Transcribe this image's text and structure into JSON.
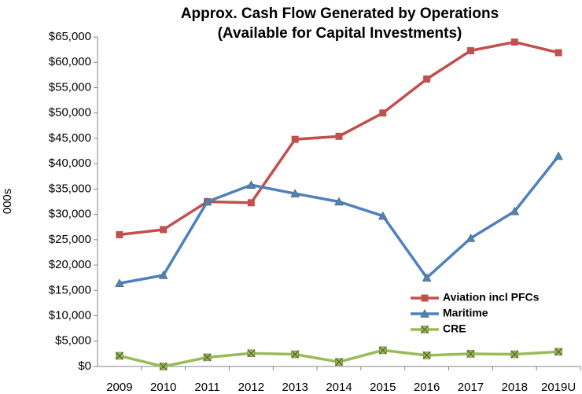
{
  "chart_data": {
    "type": "line",
    "title": "Approx. Cash Flow Generated by Operations",
    "subtitle": "(Available for Capital Investments)",
    "y_label": "000s",
    "categories": [
      "2009",
      "2010",
      "2011",
      "2012",
      "2013",
      "2014",
      "2015",
      "2016",
      "2017",
      "2018",
      "2019U"
    ],
    "series": [
      {
        "name": "Aviation incl PFCs",
        "color": "#c0504d",
        "marker": "square",
        "values": [
          26000,
          27000,
          32500,
          32300,
          44800,
          45400,
          50000,
          56700,
          62300,
          64000,
          61900
        ]
      },
      {
        "name": "Maritime",
        "color": "#4f81bd",
        "marker": "triangle",
        "values": [
          16400,
          18000,
          32500,
          35800,
          34100,
          32500,
          29700,
          17500,
          25300,
          30600,
          41500
        ]
      },
      {
        "name": "CRE",
        "color": "#9bbb59",
        "marker": "xsquare",
        "values": [
          2100,
          0,
          1800,
          2600,
          2400,
          900,
          3200,
          2200,
          2500,
          2400,
          2900
        ]
      }
    ],
    "ylim": [
      0,
      65000
    ],
    "yticks": [
      {
        "value": 0,
        "label": "$0"
      },
      {
        "value": 5000,
        "label": "$5,000"
      },
      {
        "value": 10000,
        "label": "$10,000"
      },
      {
        "value": 15000,
        "label": "$15,000"
      },
      {
        "value": 20000,
        "label": "$20,000"
      },
      {
        "value": 25000,
        "label": "$25,000"
      },
      {
        "value": 30000,
        "label": "$30,000"
      },
      {
        "value": 35000,
        "label": "$35,000"
      },
      {
        "value": 40000,
        "label": "$40,000"
      },
      {
        "value": 45000,
        "label": "$45,000"
      },
      {
        "value": 50000,
        "label": "$50,000"
      },
      {
        "value": 55000,
        "label": "$55,000"
      },
      {
        "value": 60000,
        "label": "$60,000"
      },
      {
        "value": 65000,
        "label": "$65,000"
      }
    ],
    "grid": false,
    "legend": "lower-right"
  }
}
